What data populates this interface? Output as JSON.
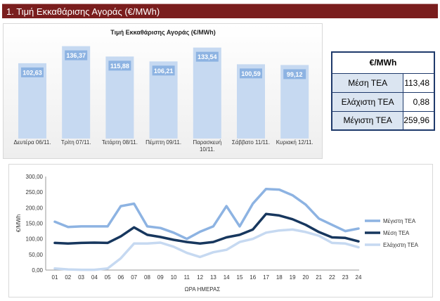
{
  "header": {
    "title": "1. Τιμή Εκκαθάρισης Αγοράς (€/MWh)"
  },
  "table": {
    "header": "€/MWh",
    "rows": [
      {
        "label": "Μέση ΤΕΑ",
        "value": "113,48"
      },
      {
        "label": "Ελάχιστη ΤΕΑ",
        "value": "0,88"
      },
      {
        "label": "Μέγιστη ΤΕΑ",
        "value": "259,96"
      }
    ]
  },
  "colors": {
    "header_bg": "#7a1e1e",
    "bar": "#c6d9f1",
    "bar_label_bg": "#8db3e2",
    "max_line": "#8db3e2",
    "avg_line": "#17375e",
    "min_line": "#c6d9f1",
    "table_label_bg": "#dbe5f1"
  },
  "chart_data": [
    {
      "type": "bar",
      "title": "Τιμή Εκκαθάρισης Αγοράς (€/MWh)",
      "categories": [
        "Δευτέρα 06/11.",
        "Τρίτη 07/11.",
        "Τετάρτη 08/11.",
        "Πέμπτη 09/11.",
        "Παρασκευή 10/11.",
        "Σάββατο 11/11.",
        "Κυριακή 12/11."
      ],
      "values": [
        102.63,
        136.37,
        115.88,
        106.21,
        133.54,
        100.59,
        99.12
      ],
      "value_labels": [
        "102,63",
        "136,37",
        "115,88",
        "106,21",
        "133,54",
        "100,59",
        "99,12"
      ],
      "grid": false
    },
    {
      "type": "line",
      "xlabel": "ΩΡΑ ΗΜΕΡΑΣ",
      "ylabel": "€/MWh",
      "x": [
        "01",
        "02",
        "03",
        "04",
        "05",
        "06",
        "07",
        "08",
        "09",
        "10",
        "11",
        "12",
        "13",
        "14",
        "15",
        "16",
        "17",
        "18",
        "19",
        "20",
        "21",
        "22",
        "23",
        "24"
      ],
      "ylim": [
        0,
        300
      ],
      "yticks": [
        "0,00",
        "50,00",
        "100,00",
        "150,00",
        "200,00",
        "250,00",
        "300,00"
      ],
      "legend": "right",
      "grid": false,
      "series": [
        {
          "name": "Μέγιστη ΤΕΑ",
          "values": [
            155,
            138,
            140,
            140,
            140,
            205,
            213,
            140,
            135,
            120,
            100,
            123,
            140,
            205,
            140,
            213,
            260,
            258,
            240,
            210,
            165,
            145,
            125,
            133
          ]
        },
        {
          "name": "Μέση ΤΕΑ",
          "values": [
            87,
            85,
            87,
            88,
            87,
            108,
            137,
            113,
            106,
            97,
            90,
            85,
            90,
            105,
            113,
            130,
            180,
            175,
            163,
            145,
            122,
            105,
            103,
            92
          ]
        },
        {
          "name": "Ελάχιστη ΤΕΑ",
          "values": [
            5,
            2,
            1,
            1,
            5,
            38,
            85,
            85,
            88,
            75,
            55,
            42,
            57,
            65,
            90,
            100,
            120,
            127,
            130,
            122,
            110,
            87,
            85,
            73
          ]
        }
      ]
    }
  ]
}
